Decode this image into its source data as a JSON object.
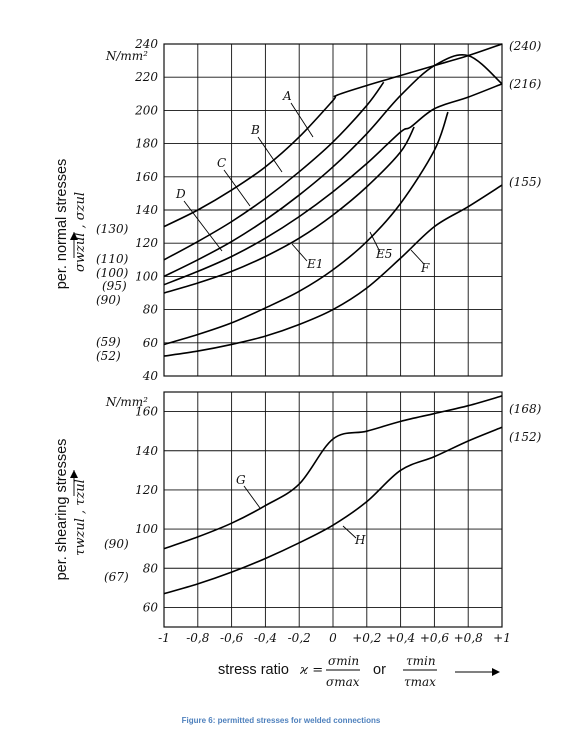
{
  "figure": {
    "caption": "Figure 6: permitted stresses for welded connections"
  },
  "chart_data": [
    {
      "type": "line",
      "panel": "normal",
      "ylabel": "per. normal stresses",
      "ylabel_symbol": "σwzul , σzul",
      "unit": "N/mm²",
      "ylim": [
        40,
        240
      ],
      "yticks": [
        40,
        60,
        80,
        100,
        120,
        140,
        160,
        180,
        200,
        220,
        240
      ],
      "xlim": [
        -1,
        1
      ],
      "grid": true,
      "left_labels": [
        "(130)",
        "(110)",
        "(100)",
        "(95)",
        "(90)",
        "(59)",
        "(52)"
      ],
      "right_labels": [
        "(240)",
        "(216)",
        "(155)"
      ],
      "series": [
        {
          "name": "A",
          "x": [
            -1,
            -0.8,
            -0.6,
            -0.4,
            -0.2,
            0,
            0.02,
            0.2,
            0.4,
            0.6,
            0.8,
            1
          ],
          "y": [
            130,
            140,
            152,
            166,
            184,
            206,
            209,
            215,
            221,
            227,
            233,
            240
          ]
        },
        {
          "name": "B",
          "x": [
            -1,
            -0.8,
            -0.6,
            -0.4,
            -0.2,
            0,
            0.2,
            0.3
          ],
          "y": [
            110,
            121,
            133,
            147,
            163,
            181,
            203,
            217
          ]
        },
        {
          "name": "C",
          "x": [
            -1,
            -0.8,
            -0.6,
            -0.4,
            -0.2,
            0,
            0.2,
            0.4,
            0.6,
            0.8,
            1
          ],
          "y": [
            100,
            110,
            121,
            134,
            149,
            166,
            186,
            209,
            227,
            233,
            216
          ]
        },
        {
          "name": "D",
          "x": [
            -1,
            -0.8,
            -0.6,
            -0.4,
            -0.2,
            0,
            0.2,
            0.4,
            0.46,
            0.6,
            0.8,
            1
          ],
          "y": [
            95,
            103,
            112,
            123,
            136,
            151,
            168,
            187,
            190,
            201,
            208,
            216
          ]
        },
        {
          "name": "E1",
          "x": [
            -1,
            -0.8,
            -0.6,
            -0.4,
            -0.2,
            0,
            0.2,
            0.4,
            0.48
          ],
          "y": [
            90,
            96,
            103,
            112,
            123,
            137,
            154,
            175,
            190
          ]
        },
        {
          "name": "E5",
          "x": [
            -1,
            -0.8,
            -0.6,
            -0.4,
            -0.2,
            0,
            0.2,
            0.4,
            0.6,
            0.68
          ],
          "y": [
            59,
            65,
            72,
            81,
            91,
            104,
            121,
            144,
            176,
            199
          ]
        },
        {
          "name": "F",
          "x": [
            -1,
            -0.8,
            -0.6,
            -0.4,
            -0.2,
            0,
            0.2,
            0.4,
            0.6,
            0.8,
            1
          ],
          "y": [
            52,
            55,
            59,
            64,
            71,
            80,
            93,
            111,
            130,
            142,
            155
          ]
        }
      ]
    },
    {
      "type": "line",
      "panel": "shear",
      "ylabel": "per. shearing stresses",
      "ylabel_symbol": "τwzul , τzul",
      "unit": "N/mm²",
      "ylim": [
        50,
        170
      ],
      "yticks": [
        60,
        80,
        100,
        120,
        140,
        160
      ],
      "xlim": [
        -1,
        1
      ],
      "xticks": [
        "-1",
        "-0,8",
        "-0,6",
        "-0,4",
        "-0,2",
        "0",
        "+0,2",
        "+0,4",
        "+0,6",
        "+0,8",
        "+1"
      ],
      "grid": true,
      "left_labels": [
        "(90)",
        "(67)"
      ],
      "right_labels": [
        "(168)",
        "(152)"
      ],
      "series": [
        {
          "name": "G",
          "x": [
            -1,
            -0.8,
            -0.6,
            -0.4,
            -0.2,
            0,
            0.2,
            0.4,
            0.6,
            0.8,
            1
          ],
          "y": [
            90,
            96,
            103,
            112,
            123,
            146,
            150,
            155,
            159,
            163,
            168
          ]
        },
        {
          "name": "H",
          "x": [
            -1,
            -0.8,
            -0.6,
            -0.4,
            -0.2,
            0,
            0.2,
            0.4,
            0.6,
            0.8,
            1
          ],
          "y": [
            67,
            72,
            78,
            85,
            93,
            102,
            114,
            130,
            137,
            145,
            152
          ]
        }
      ]
    }
  ],
  "xaxis": {
    "label": "stress ratio",
    "symbol": "ϰ =",
    "sigma_num": "σmin",
    "sigma_den": "σmax",
    "or": "or",
    "tau_num": "τmin",
    "tau_den": "τmax"
  }
}
